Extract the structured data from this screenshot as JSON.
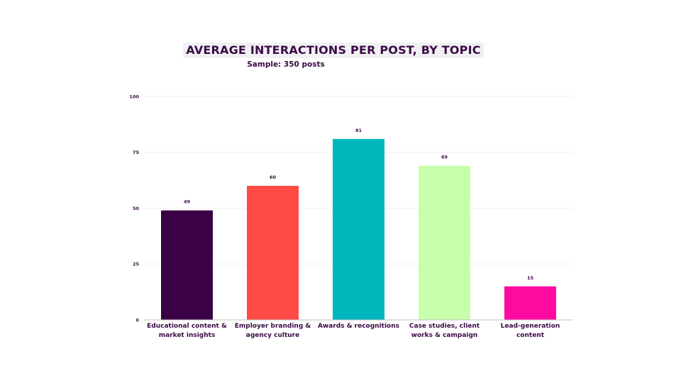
{
  "chart_data": {
    "type": "bar",
    "title": "AVERAGE INTERACTIONS PER POST, BY TOPIC",
    "subtitle": "Sample: 350 posts",
    "categories": [
      [
        "Educational content &",
        "market insights"
      ],
      [
        "Employer branding &",
        "agency culture"
      ],
      [
        "Awards & recognitions"
      ],
      [
        "Case studies, client",
        "works & campaign"
      ],
      [
        "Lead-generation",
        "content"
      ]
    ],
    "values": [
      49,
      60,
      81,
      69,
      15
    ],
    "colors": [
      "#3a0145",
      "#ff4a45",
      "#00b7bd",
      "#c8ffac",
      "#ff0aa0"
    ],
    "ylim": [
      0,
      100
    ],
    "yticks": [
      0,
      25,
      50,
      75,
      100
    ],
    "grid": true,
    "xlabel": "",
    "ylabel": ""
  }
}
